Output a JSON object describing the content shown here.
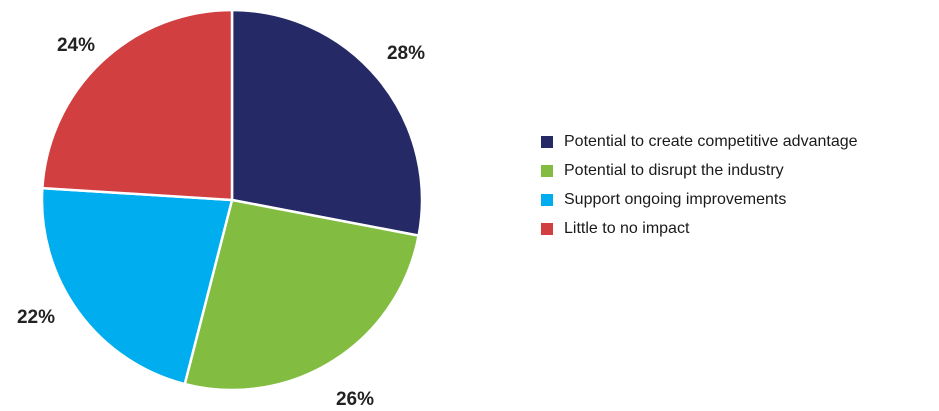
{
  "chart_data": {
    "type": "pie",
    "title": "",
    "legend_position": "right",
    "start_angle_deg": -90,
    "direction": "clockwise",
    "slices": [
      {
        "label": "Potential to create competitive advantage",
        "value": 28,
        "value_label": "28%",
        "color": "#252a66"
      },
      {
        "label": "Potential to disrupt the industry",
        "value": 26,
        "value_label": "26%",
        "color": "#82bd41"
      },
      {
        "label": "Support ongoing improvements",
        "value": 22,
        "value_label": "22%",
        "color": "#00adee"
      },
      {
        "label": "Little to no impact",
        "value": 24,
        "value_label": "24%",
        "color": "#d23f41"
      }
    ]
  }
}
